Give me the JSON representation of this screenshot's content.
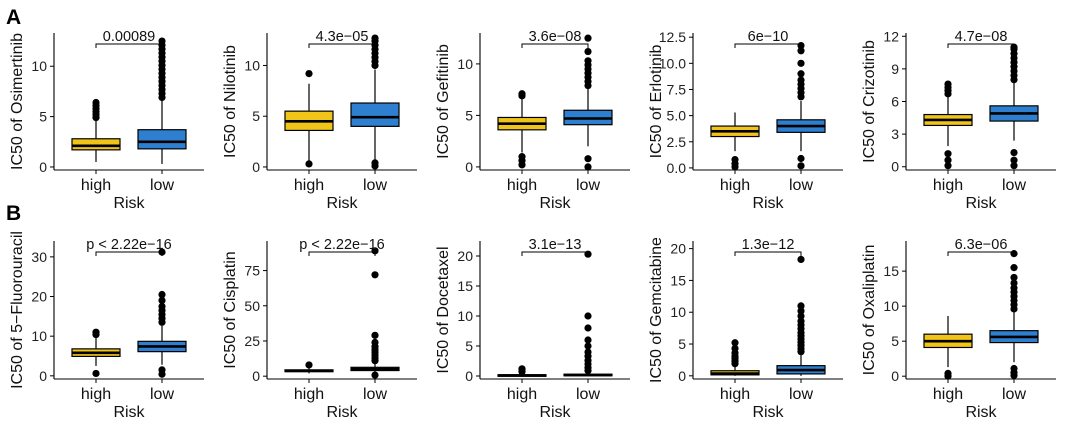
{
  "figure": {
    "panel_labels": [
      "A",
      "B"
    ],
    "xlabel": "Risk",
    "categories": [
      "high",
      "low"
    ],
    "colors": {
      "high": "#F0C419",
      "low": "#2F7FD0"
    }
  },
  "chart_data": [
    {
      "type": "box",
      "title": "",
      "xlabel": "Risk",
      "ylabel": "IC50 of Osimertinib",
      "categories": [
        "high",
        "low"
      ],
      "ylim": [
        -0.3,
        13.3
      ],
      "yticks": [
        0,
        5,
        10
      ],
      "ytick_labels": [
        "0",
        "5",
        "10"
      ],
      "pvalue": "0.00089",
      "boxes": [
        {
          "group": "high",
          "whisker_low": 0.5,
          "q1": 1.7,
          "median": 2.1,
          "q3": 2.8,
          "whisker_high": 4.6,
          "outliers": [
            4.9,
            5.2,
            5.5,
            5.8,
            6.1,
            6.4
          ]
        },
        {
          "group": "low",
          "whisker_low": 0.3,
          "q1": 1.8,
          "median": 2.5,
          "q3": 3.7,
          "whisker_high": 6.6,
          "outliers": [
            6.9,
            7.3,
            7.7,
            8.1,
            8.5,
            8.9,
            9.3,
            9.7,
            10.1,
            10.5,
            10.9,
            11.3,
            11.7,
            12.1,
            12.5
          ]
        }
      ]
    },
    {
      "type": "box",
      "title": "",
      "xlabel": "Risk",
      "ylabel": "IC50 of Nilotinib",
      "categories": [
        "high",
        "low"
      ],
      "ylim": [
        -0.3,
        13.2
      ],
      "yticks": [
        0,
        5,
        10
      ],
      "ytick_labels": [
        "0",
        "5",
        "10"
      ],
      "pvalue": "4.3e−05",
      "boxes": [
        {
          "group": "high",
          "whisker_low": 0.5,
          "q1": 3.6,
          "median": 4.5,
          "q3": 5.5,
          "whisker_high": 8.2,
          "outliers": [
            0.3,
            9.2
          ]
        },
        {
          "group": "low",
          "whisker_low": 0.6,
          "q1": 4.0,
          "median": 4.9,
          "q3": 6.3,
          "whisker_high": 9.6,
          "outliers": [
            0.1,
            0.4,
            10.0,
            10.4,
            10.8,
            11.2,
            11.6,
            12.0,
            12.4,
            12.7
          ]
        }
      ]
    },
    {
      "type": "box",
      "title": "",
      "xlabel": "Risk",
      "ylabel": "IC50 of Gefitinib",
      "categories": [
        "high",
        "low"
      ],
      "ylim": [
        -0.3,
        13.0
      ],
      "yticks": [
        0,
        5,
        10
      ],
      "ytick_labels": [
        "0",
        "5",
        "10"
      ],
      "pvalue": "3.6e−08",
      "boxes": [
        {
          "group": "high",
          "whisker_low": 1.4,
          "q1": 3.6,
          "median": 4.2,
          "q3": 4.8,
          "whisker_high": 6.6,
          "outliers": [
            0.2,
            0.6,
            1.0,
            6.9,
            7.1
          ]
        },
        {
          "group": "low",
          "whisker_low": 2.0,
          "q1": 4.1,
          "median": 4.7,
          "q3": 5.5,
          "whisker_high": 7.6,
          "outliers": [
            0.0,
            0.8,
            7.9,
            8.3,
            8.7,
            9.1,
            9.5,
            9.9,
            10.3,
            11.2,
            12.5
          ]
        }
      ]
    },
    {
      "type": "box",
      "title": "",
      "xlabel": "Risk",
      "ylabel": "IC50 of Erlotinib",
      "categories": [
        "high",
        "low"
      ],
      "ylim": [
        -0.2,
        12.9
      ],
      "yticks": [
        0,
        2.5,
        5,
        7.5,
        10,
        12.5
      ],
      "ytick_labels": [
        "0.0",
        "2.5",
        "5.0",
        "7.5",
        "10.0",
        "12.5"
      ],
      "pvalue": "6e−10",
      "boxes": [
        {
          "group": "high",
          "whisker_low": 1.6,
          "q1": 3.0,
          "median": 3.5,
          "q3": 4.0,
          "whisker_high": 5.3,
          "outliers": [
            0.1,
            0.4,
            0.8
          ]
        },
        {
          "group": "low",
          "whisker_low": 1.6,
          "q1": 3.4,
          "median": 4.0,
          "q3": 4.6,
          "whisker_high": 6.4,
          "outliers": [
            0.2,
            0.9,
            6.8,
            7.2,
            7.6,
            8.0,
            8.4,
            9.0,
            10.0,
            11.2,
            11.7
          ]
        }
      ]
    },
    {
      "type": "box",
      "title": "",
      "xlabel": "Risk",
      "ylabel": "IC50 of Crizotinib",
      "categories": [
        "high",
        "low"
      ],
      "ylim": [
        -0.3,
        12.3
      ],
      "yticks": [
        0,
        3,
        6,
        9,
        12
      ],
      "ytick_labels": [
        "0",
        "3",
        "6",
        "9",
        "12"
      ],
      "pvalue": "4.7e−08",
      "boxes": [
        {
          "group": "high",
          "whisker_low": 1.9,
          "q1": 3.8,
          "median": 4.3,
          "q3": 4.8,
          "whisker_high": 6.4,
          "outliers": [
            0.1,
            0.6,
            1.2,
            6.7,
            7.0,
            7.3,
            7.6
          ]
        },
        {
          "group": "low",
          "whisker_low": 2.4,
          "q1": 4.2,
          "median": 4.9,
          "q3": 5.6,
          "whisker_high": 7.7,
          "outliers": [
            0.1,
            0.6,
            1.3,
            8.0,
            8.4,
            8.8,
            9.2,
            9.6,
            10.0,
            10.4,
            10.8,
            11.0
          ]
        }
      ]
    },
    {
      "type": "box",
      "title": "",
      "xlabel": "Risk",
      "ylabel": "IC50 of 5−Fluorouracil",
      "categories": [
        "high",
        "low"
      ],
      "ylim": [
        -0.8,
        34.0
      ],
      "yticks": [
        0,
        10,
        20,
        30
      ],
      "ytick_labels": [
        "0",
        "10",
        "20",
        "30"
      ],
      "pvalue": "p < 2.22e−16",
      "boxes": [
        {
          "group": "high",
          "whisker_low": 2.5,
          "q1": 4.9,
          "median": 5.8,
          "q3": 6.8,
          "whisker_high": 9.6,
          "outliers": [
            0.6,
            10.4,
            11.0
          ]
        },
        {
          "group": "low",
          "whisker_low": 2.8,
          "q1": 6.1,
          "median": 7.4,
          "q3": 8.7,
          "whisker_high": 12.6,
          "outliers": [
            0.4,
            1.5,
            13.5,
            14.5,
            15.5,
            16.5,
            17.5,
            19.0,
            20.5,
            31.2
          ]
        }
      ]
    },
    {
      "type": "box",
      "title": "",
      "xlabel": "Risk",
      "ylabel": "IC50 of Cisplatin",
      "categories": [
        "high",
        "low"
      ],
      "ylim": [
        -2.0,
        96.0
      ],
      "yticks": [
        0,
        25,
        50,
        75
      ],
      "ytick_labels": [
        "0",
        "25",
        "50",
        "75"
      ],
      "pvalue": "p < 2.22e−16",
      "boxes": [
        {
          "group": "high",
          "whisker_low": 2.0,
          "q1": 3.2,
          "median": 3.8,
          "q3": 4.5,
          "whisker_high": 6.0,
          "outliers": [
            8.0
          ]
        },
        {
          "group": "low",
          "whisker_low": 2.2,
          "q1": 4.0,
          "median": 5.0,
          "q3": 6.3,
          "whisker_high": 9.0,
          "outliers": [
            0.8,
            11.0,
            13.0,
            15.0,
            17.0,
            19.0,
            21.0,
            24.0,
            29.0,
            72.0,
            89.0
          ]
        }
      ]
    },
    {
      "type": "box",
      "title": "",
      "xlabel": "Risk",
      "ylabel": "IC50 of Docetaxel",
      "categories": [
        "high",
        "low"
      ],
      "ylim": [
        -0.5,
        22.5
      ],
      "yticks": [
        0,
        5,
        10,
        15,
        20
      ],
      "ytick_labels": [
        "0",
        "5",
        "10",
        "15",
        "20"
      ],
      "pvalue": "3.1e−13",
      "boxes": [
        {
          "group": "high",
          "whisker_low": 0.0,
          "q1": 0.05,
          "median": 0.1,
          "q3": 0.2,
          "whisker_high": 0.4,
          "outliers": [
            0.7,
            1.0,
            1.2
          ]
        },
        {
          "group": "low",
          "whisker_low": 0.0,
          "q1": 0.08,
          "median": 0.15,
          "q3": 0.3,
          "whisker_high": 0.6,
          "outliers": [
            0.9,
            1.4,
            2.0,
            2.6,
            3.3,
            4.0,
            5.0,
            6.0,
            8.0,
            10.0,
            20.3
          ]
        }
      ]
    },
    {
      "type": "box",
      "title": "",
      "xlabel": "Risk",
      "ylabel": "IC50 of Gemcitabine",
      "categories": [
        "high",
        "low"
      ],
      "ylim": [
        -0.5,
        21.2
      ],
      "yticks": [
        0,
        5,
        10,
        15,
        20
      ],
      "ytick_labels": [
        "0",
        "5",
        "10",
        "15",
        "20"
      ],
      "pvalue": "1.3e−12",
      "boxes": [
        {
          "group": "high",
          "whisker_low": 0.0,
          "q1": 0.15,
          "median": 0.35,
          "q3": 0.8,
          "whisker_high": 1.6,
          "outliers": [
            1.9,
            2.3,
            2.7,
            3.1,
            3.6,
            4.3,
            5.2
          ]
        },
        {
          "group": "low",
          "whisker_low": 0.0,
          "q1": 0.3,
          "median": 0.9,
          "q3": 1.6,
          "whisker_high": 3.4,
          "outliers": [
            3.8,
            4.3,
            4.8,
            5.3,
            5.8,
            6.3,
            6.8,
            7.4,
            8.0,
            8.6,
            9.4,
            10.2,
            11.0,
            18.3
          ]
        }
      ]
    },
    {
      "type": "box",
      "title": "",
      "xlabel": "Risk",
      "ylabel": "IC50 of Oxaliplatin",
      "categories": [
        "high",
        "low"
      ],
      "ylim": [
        -0.4,
        19.3
      ],
      "yticks": [
        0,
        5,
        10,
        15
      ],
      "ytick_labels": [
        "0",
        "5",
        "10",
        "15"
      ],
      "pvalue": "6.3e−06",
      "boxes": [
        {
          "group": "high",
          "whisker_low": 1.3,
          "q1": 4.1,
          "median": 5.0,
          "q3": 6.0,
          "whisker_high": 8.6,
          "outliers": [
            0.0,
            0.4
          ]
        },
        {
          "group": "low",
          "whisker_low": 2.0,
          "q1": 4.8,
          "median": 5.6,
          "q3": 6.5,
          "whisker_high": 9.1,
          "outliers": [
            0.1,
            0.5,
            1.1,
            9.6,
            10.2,
            10.8,
            11.4,
            12.0,
            12.6,
            13.3,
            14.1,
            15.5,
            17.5
          ]
        }
      ]
    }
  ]
}
